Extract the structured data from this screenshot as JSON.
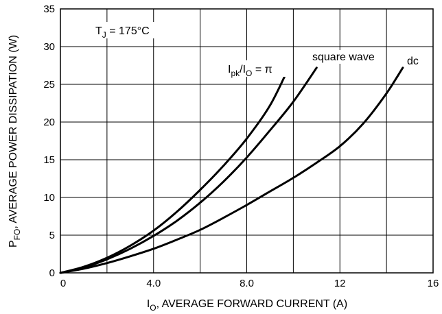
{
  "chart_data": {
    "type": "line",
    "title": "",
    "xlabel": {
      "main": "I",
      "sub": "O",
      "rest": ", AVERAGE FORWARD CURRENT (A)"
    },
    "ylabel": {
      "main": "P",
      "sub": "FO",
      "rest": ", AVERAGE POWER DISSIPATION (W)"
    },
    "xlim": [
      0,
      16
    ],
    "ylim": [
      0,
      35
    ],
    "xticks": [
      {
        "value": 0,
        "label": "0"
      },
      {
        "value": 4,
        "label": "4.0"
      },
      {
        "value": 8,
        "label": "8.0"
      },
      {
        "value": 12,
        "label": "12"
      },
      {
        "value": 16,
        "label": "16"
      }
    ],
    "yticks": [
      {
        "value": 0,
        "label": "0"
      },
      {
        "value": 5,
        "label": "5"
      },
      {
        "value": 10,
        "label": "10"
      },
      {
        "value": 15,
        "label": "15"
      },
      {
        "value": 20,
        "label": "20"
      },
      {
        "value": 25,
        "label": "25"
      },
      {
        "value": 30,
        "label": "30"
      },
      {
        "value": 35,
        "label": "35"
      }
    ],
    "xgrid": [
      2,
      4,
      6,
      8,
      10,
      12,
      14
    ],
    "ygrid": [
      5,
      10,
      15,
      20,
      25,
      30
    ],
    "grid": true,
    "condition": {
      "main": "T",
      "sub": "J",
      "rest": " = 175°C"
    },
    "series": [
      {
        "name": {
          "main": "I",
          "sub": "pk",
          "mid": "/I",
          "sub2": "O",
          "rest": " = π"
        },
        "x": [
          0,
          1,
          2,
          3,
          4,
          5,
          6,
          7,
          8,
          9,
          9.8
        ],
        "y": [
          0,
          0.8,
          2.0,
          3.6,
          5.6,
          8.1,
          11.0,
          14.2,
          17.8,
          22.2,
          27.2
        ]
      },
      {
        "name": "square wave",
        "x": [
          0,
          1,
          2,
          3,
          4,
          5,
          6,
          7,
          8,
          9,
          10,
          11
        ],
        "y": [
          0,
          0.7,
          1.8,
          3.2,
          4.9,
          6.9,
          9.3,
          12.1,
          15.3,
          18.9,
          22.7,
          27.2
        ]
      },
      {
        "name": "dc",
        "x": [
          0,
          1,
          2,
          3,
          4,
          5,
          6,
          7,
          8,
          9,
          10,
          11,
          12,
          13,
          14,
          14.7
        ],
        "y": [
          0,
          0.55,
          1.3,
          2.2,
          3.2,
          4.4,
          5.7,
          7.3,
          9.0,
          10.8,
          12.6,
          14.6,
          16.8,
          19.8,
          23.8,
          27.2
        ]
      }
    ]
  }
}
